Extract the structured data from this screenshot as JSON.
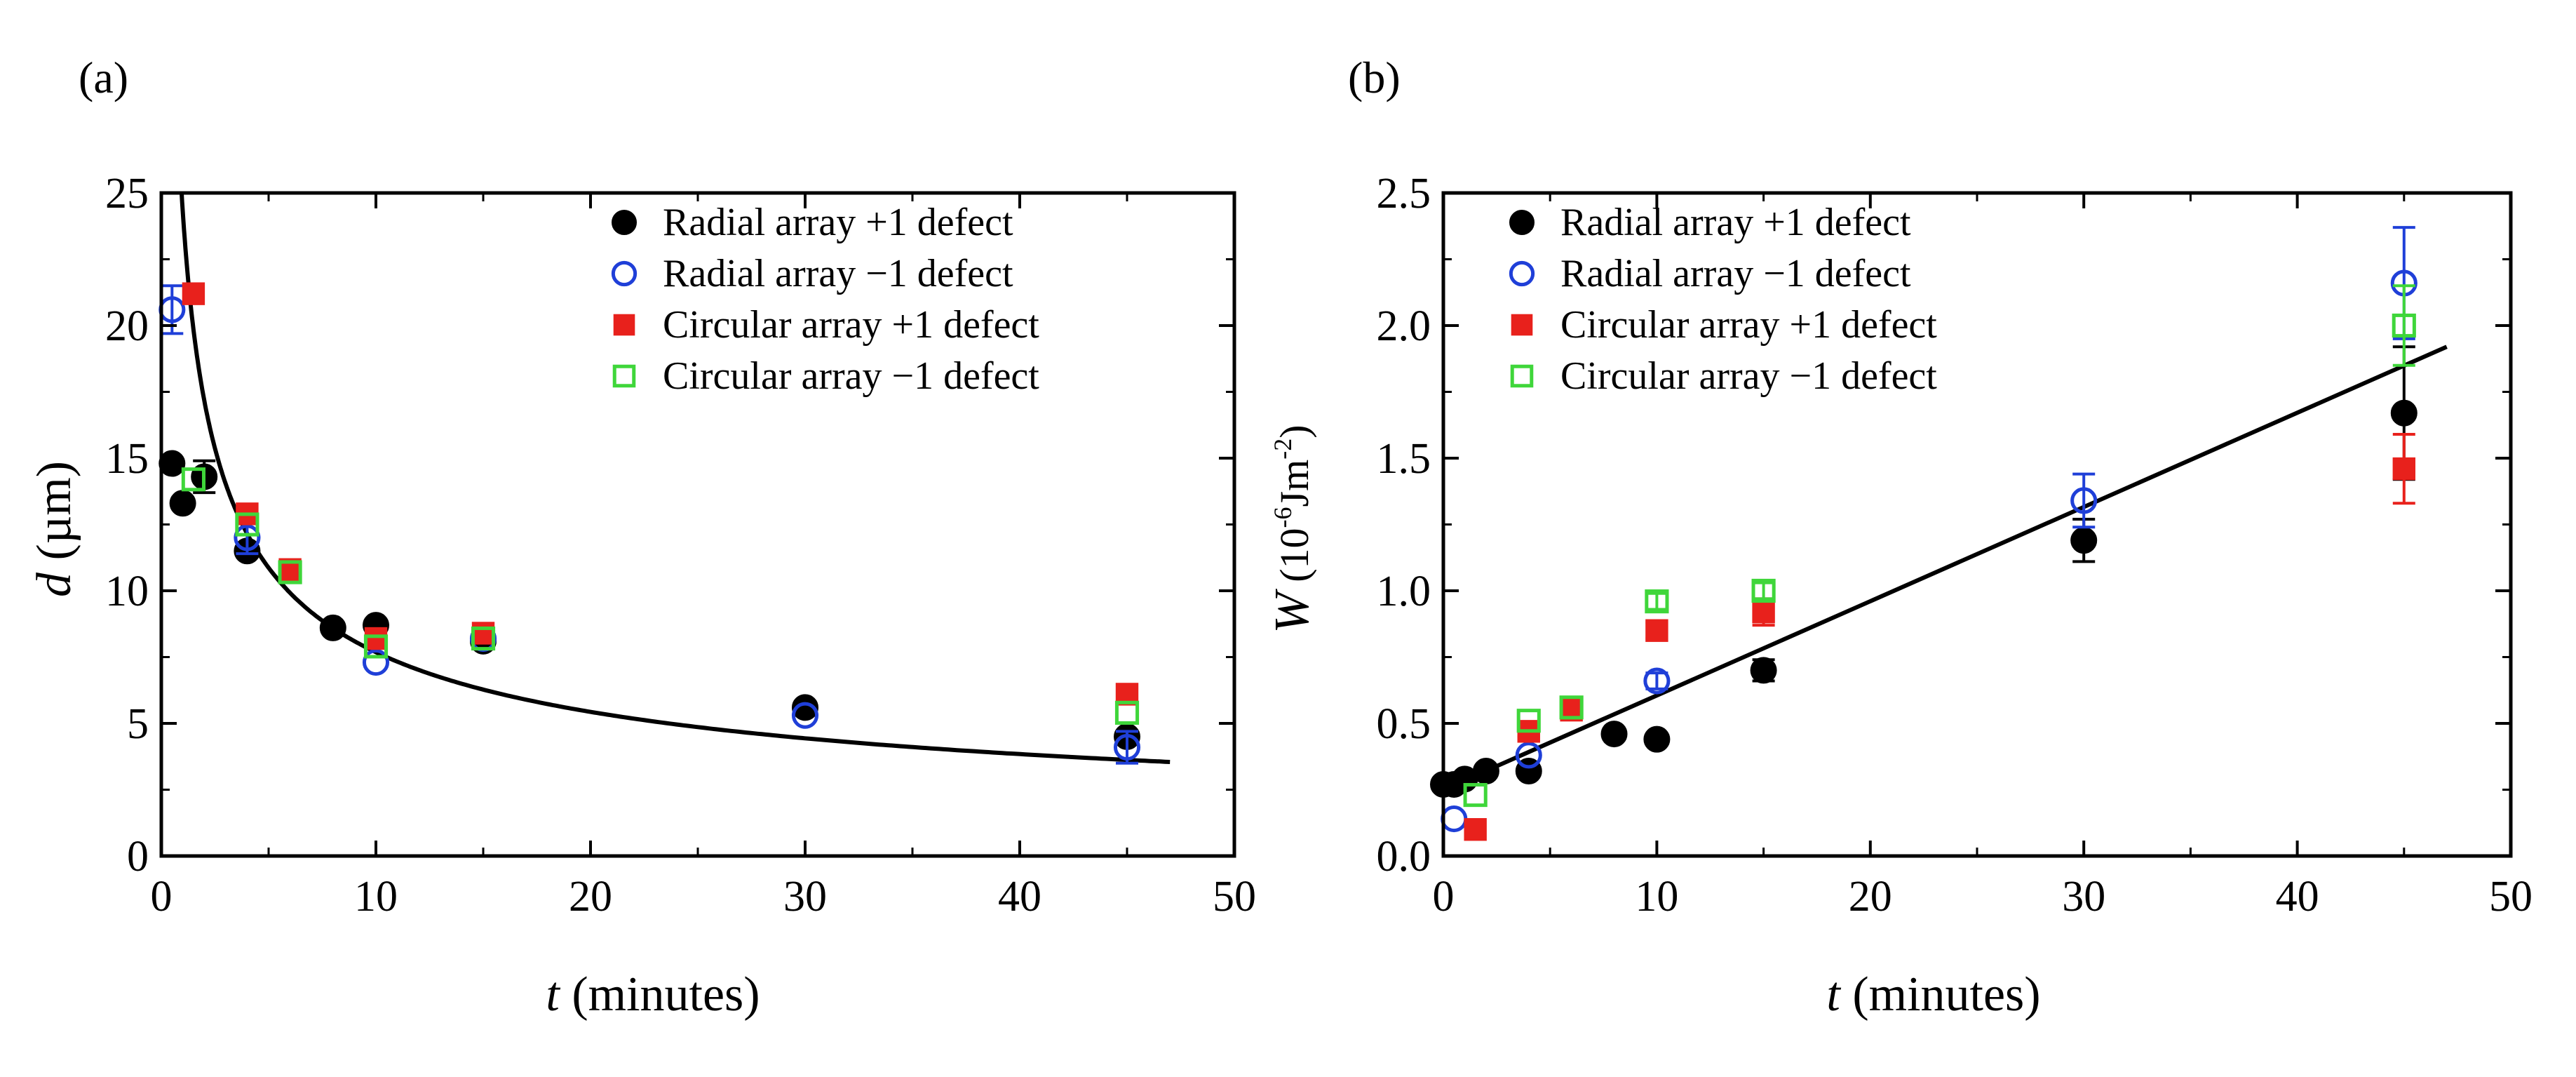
{
  "figure": {
    "panels": [
      {
        "label": "(a)"
      },
      {
        "label": "(b)"
      }
    ]
  },
  "styles": {
    "radial_plus1": {
      "color": "#000000",
      "fill": true,
      "marker": "circle"
    },
    "radial_minus1": {
      "color": "#1f3fd8",
      "fill": false,
      "marker": "circle"
    },
    "circular_plus1": {
      "color": "#e8211c",
      "fill": true,
      "marker": "square"
    },
    "circular_minus1": {
      "color": "#3fd63a",
      "fill": false,
      "marker": "square"
    },
    "fit_color": "#000000"
  },
  "chart_data": [
    {
      "type": "scatter",
      "panel": "(a)",
      "xlabel_italic": "t",
      "xlabel_rest": " (minutes)",
      "ylabel_italic": "d",
      "ylabel_rest": " (µm)",
      "xlim": [
        0,
        50
      ],
      "ylim": [
        0,
        25
      ],
      "xticks": [
        0,
        10,
        20,
        30,
        40,
        50
      ],
      "yticks": [
        0,
        5,
        10,
        15,
        20,
        25
      ],
      "legend_position": "top-right",
      "fit": {
        "type": "curve",
        "description": "d = A / sqrt(t)",
        "A": 24.3,
        "x_range": [
          0.27,
          47
        ]
      },
      "series": [
        {
          "key": "radial_plus1",
          "name": "Radial array +1 defect",
          "x": [
            0.5,
            1,
            2,
            4,
            8,
            10,
            15,
            30,
            45
          ],
          "y": [
            14.8,
            13.3,
            14.3,
            11.5,
            8.6,
            8.7,
            8.1,
            5.6,
            4.5
          ],
          "err": [
            0,
            0,
            0.6,
            0,
            0,
            0,
            0,
            0,
            0
          ]
        },
        {
          "key": "radial_minus1",
          "name": "Radial array −1 defect",
          "x": [
            0.5,
            4,
            10,
            15,
            30,
            45
          ],
          "y": [
            20.6,
            12.0,
            7.3,
            8.2,
            5.3,
            4.1
          ],
          "err": [
            0.9,
            0.6,
            0,
            0,
            0,
            0.6
          ]
        },
        {
          "key": "circular_plus1",
          "name": "Circular array +1 defect",
          "x": [
            1.5,
            4,
            6,
            10,
            15,
            45
          ],
          "y": [
            21.2,
            12.9,
            10.8,
            8.2,
            8.4,
            6.1
          ],
          "err": [
            0,
            0,
            0,
            0,
            0,
            0
          ]
        },
        {
          "key": "circular_minus1",
          "name": "Circular array −1 defect",
          "x": [
            1.5,
            4,
            6,
            10,
            15,
            45
          ],
          "y": [
            14.2,
            12.5,
            10.7,
            7.9,
            8.2,
            5.4
          ],
          "err": [
            0,
            0,
            0,
            0,
            0,
            0
          ]
        }
      ]
    },
    {
      "type": "scatter",
      "panel": "(b)",
      "xlabel_italic": "t",
      "xlabel_rest": " (minutes)",
      "ylabel_italic": "W",
      "ylabel_rest": " (10",
      "ylabel_sup1": "-6",
      "ylabel_mid": "Jm",
      "ylabel_sup2": "-2",
      "ylabel_end": ")",
      "xlim": [
        0,
        50
      ],
      "ylim": [
        0,
        2.5
      ],
      "xticks": [
        0,
        10,
        20,
        30,
        40,
        50
      ],
      "yticks": [
        0.0,
        0.5,
        1.0,
        1.5,
        2.0,
        2.5
      ],
      "ytick_labels": [
        "0.0",
        "0.5",
        "1.0",
        "1.5",
        "2.0",
        "2.5"
      ],
      "legend_position": "top-left",
      "fit": {
        "type": "line",
        "x_range": [
          0,
          47
        ],
        "y_range": [
          0.25,
          1.92
        ]
      },
      "series": [
        {
          "key": "radial_plus1",
          "name": "Radial array +1 defect",
          "x": [
            0,
            0.5,
            1,
            2,
            4,
            8,
            10,
            15,
            30,
            45
          ],
          "y": [
            0.27,
            0.27,
            0.29,
            0.32,
            0.32,
            0.46,
            0.44,
            0.7,
            1.19,
            1.67
          ],
          "err": [
            0,
            0,
            0,
            0,
            0,
            0,
            0,
            0.04,
            0.08,
            0.25
          ]
        },
        {
          "key": "radial_minus1",
          "name": "Radial array −1 defect",
          "x": [
            0.5,
            4,
            10,
            30,
            45
          ],
          "y": [
            0.14,
            0.38,
            0.66,
            1.34,
            2.16
          ],
          "err": [
            0,
            0,
            0.03,
            0.1,
            0.21
          ]
        },
        {
          "key": "circular_plus1",
          "name": "Circular array +1 defect",
          "x": [
            1.5,
            4,
            6,
            10,
            15,
            45
          ],
          "y": [
            0.1,
            0.47,
            0.55,
            0.85,
            0.92,
            1.46
          ],
          "err": [
            0,
            0.02,
            0,
            0.03,
            0.05,
            0.13
          ]
        },
        {
          "key": "circular_minus1",
          "name": "Circular array −1 defect",
          "x": [
            1.5,
            4,
            6,
            10,
            15,
            45
          ],
          "y": [
            0.23,
            0.51,
            0.56,
            0.96,
            1.0,
            2.0
          ],
          "err": [
            0,
            0,
            0,
            0.03,
            0.03,
            0.15
          ]
        }
      ]
    }
  ]
}
